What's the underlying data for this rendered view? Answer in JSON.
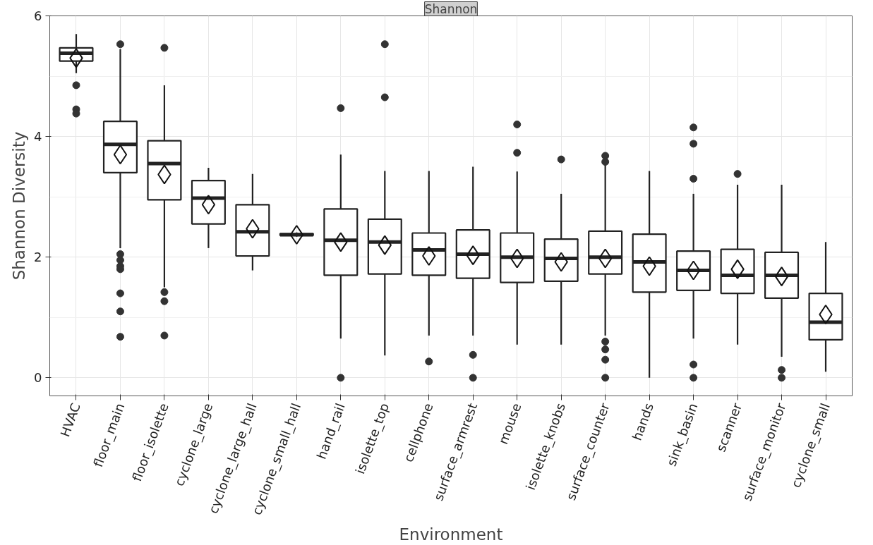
{
  "chart_data": {
    "type": "box",
    "title": "Shannon",
    "xlabel": "Environment",
    "ylabel": "Shannon Diversity",
    "categories": [
      "HVAC",
      "floor_main",
      "floor_isolette",
      "cyclone_large",
      "cyclone_large_hall",
      "cyclone_small_hall",
      "hand_rail",
      "isolette_top",
      "cellphone",
      "surface_armrest",
      "mouse",
      "isolette_knobs",
      "surface_counter",
      "hands",
      "sink_basin",
      "scanner",
      "surface_monitor",
      "cyclone_small"
    ],
    "boxes": [
      {
        "low": 5.05,
        "q1": 5.25,
        "median": 5.38,
        "q3": 5.47,
        "high": 5.7,
        "mean": 5.3,
        "outliers": [
          4.85,
          4.45,
          4.38
        ]
      },
      {
        "low": 2.15,
        "q1": 3.4,
        "median": 3.87,
        "q3": 4.25,
        "high": 5.45,
        "mean": 3.7,
        "outliers": [
          5.53,
          2.05,
          1.95,
          1.85,
          1.8,
          1.4,
          1.1,
          0.68
        ]
      },
      {
        "low": 1.5,
        "q1": 2.95,
        "median": 3.55,
        "q3": 3.93,
        "high": 4.85,
        "mean": 3.37,
        "outliers": [
          5.47,
          1.42,
          1.27,
          0.7
        ]
      },
      {
        "low": 2.15,
        "q1": 2.55,
        "median": 2.98,
        "q3": 3.27,
        "high": 3.48,
        "mean": 2.87
      },
      {
        "low": 1.78,
        "q1": 2.02,
        "median": 2.42,
        "q3": 2.87,
        "high": 3.38,
        "mean": 2.47
      },
      {
        "low": 2.34,
        "q1": 2.36,
        "median": 2.37,
        "q3": 2.39,
        "high": 2.41,
        "mean": 2.37
      },
      {
        "low": 0.65,
        "q1": 1.7,
        "median": 2.28,
        "q3": 2.8,
        "high": 3.7,
        "mean": 2.25,
        "outliers": [
          4.47,
          0.0
        ]
      },
      {
        "low": 0.37,
        "q1": 1.72,
        "median": 2.25,
        "q3": 2.63,
        "high": 3.43,
        "mean": 2.2,
        "outliers": [
          5.53,
          4.65
        ]
      },
      {
        "low": 0.7,
        "q1": 1.7,
        "median": 2.12,
        "q3": 2.4,
        "high": 3.43,
        "mean": 2.02,
        "outliers": [
          0.27
        ]
      },
      {
        "low": 0.7,
        "q1": 1.65,
        "median": 2.05,
        "q3": 2.45,
        "high": 3.5,
        "mean": 2.03,
        "outliers": [
          0.38,
          0.0
        ]
      },
      {
        "low": 0.55,
        "q1": 1.58,
        "median": 2.0,
        "q3": 2.4,
        "high": 3.42,
        "mean": 1.98,
        "outliers": [
          4.2,
          3.73
        ]
      },
      {
        "low": 0.55,
        "q1": 1.6,
        "median": 1.98,
        "q3": 2.3,
        "high": 3.05,
        "mean": 1.92,
        "outliers": [
          3.62
        ]
      },
      {
        "low": 0.7,
        "q1": 1.72,
        "median": 2.0,
        "q3": 2.43,
        "high": 3.53,
        "mean": 1.98,
        "outliers": [
          3.68,
          3.58,
          0.6,
          0.47,
          0.3,
          0.0
        ]
      },
      {
        "low": 0.0,
        "q1": 1.42,
        "median": 1.92,
        "q3": 2.38,
        "high": 3.43,
        "mean": 1.85
      },
      {
        "low": 0.65,
        "q1": 1.45,
        "median": 1.78,
        "q3": 2.1,
        "high": 3.05,
        "mean": 1.78,
        "outliers": [
          4.15,
          3.88,
          3.3,
          0.22,
          0.0
        ]
      },
      {
        "low": 0.55,
        "q1": 1.4,
        "median": 1.7,
        "q3": 2.13,
        "high": 3.2,
        "mean": 1.8,
        "outliers": [
          3.38
        ]
      },
      {
        "low": 0.35,
        "q1": 1.32,
        "median": 1.7,
        "q3": 2.08,
        "high": 3.2,
        "mean": 1.68,
        "outliers": [
          0.13,
          0.0
        ]
      },
      {
        "low": 0.1,
        "q1": 0.63,
        "median": 0.92,
        "q3": 1.4,
        "high": 2.25,
        "mean": 1.05
      }
    ],
    "ylim": [
      -0.3,
      6.0
    ],
    "yticks": [
      0,
      2,
      4,
      6
    ],
    "grid": true
  }
}
